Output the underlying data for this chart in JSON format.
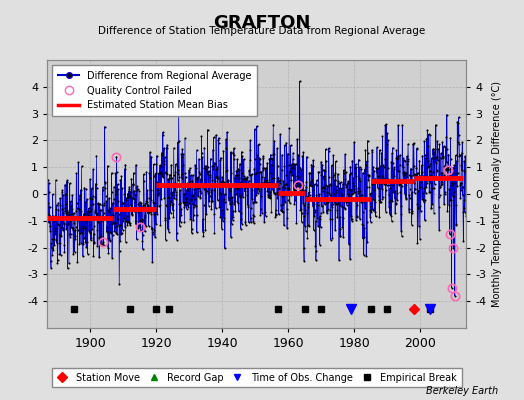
{
  "title": "GRAFTON",
  "subtitle": "Difference of Station Temperature Data from Regional Average",
  "ylabel": "Monthly Temperature Anomaly Difference (°C)",
  "xlabel_years": [
    1900,
    1920,
    1940,
    1960,
    1980,
    2000
  ],
  "xlim": [
    1887,
    2014
  ],
  "ylim": [
    -5,
    5
  ],
  "yticks": [
    -4,
    -3,
    -2,
    -1,
    0,
    1,
    2,
    3,
    4
  ],
  "background_color": "#e0e0e0",
  "plot_bg_color": "#d0d0d0",
  "line_color": "#0000cc",
  "dot_color": "#000000",
  "bias_color": "#ff0000",
  "qc_color": "#ff69b4",
  "watermark": "Berkeley Earth",
  "seed": 42,
  "start_year": 1887,
  "end_year": 2013,
  "bias_segments": [
    {
      "start": 1887,
      "end": 1907,
      "value": -0.9
    },
    {
      "start": 1907,
      "end": 1920,
      "value": -0.55
    },
    {
      "start": 1920,
      "end": 1957,
      "value": 0.35
    },
    {
      "start": 1957,
      "end": 1965,
      "value": 0.05
    },
    {
      "start": 1965,
      "end": 1985,
      "value": -0.2
    },
    {
      "start": 1985,
      "end": 1998,
      "value": 0.5
    },
    {
      "start": 1998,
      "end": 2013,
      "value": 0.6
    }
  ],
  "empirical_breaks": [
    1895,
    1912,
    1920,
    1924,
    1957,
    1965,
    1970,
    1985,
    1990,
    2003
  ],
  "obs_changes": [
    1979,
    2003
  ],
  "station_moves": [
    1998
  ],
  "qc_failed": [
    1904,
    1908,
    1915,
    1963
  ],
  "qc_failed_end": [
    2008.5,
    2009.0,
    2009.5,
    2010.0,
    2010.5
  ],
  "legend1_labels": [
    "Difference from Regional Average",
    "Quality Control Failed",
    "Estimated Station Mean Bias"
  ],
  "legend2_labels": [
    "Station Move",
    "Record Gap",
    "Time of Obs. Change",
    "Empirical Break"
  ]
}
